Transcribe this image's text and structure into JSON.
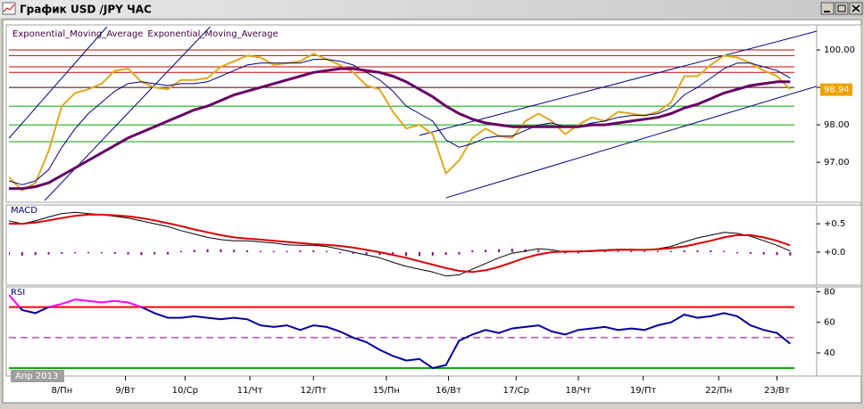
{
  "window": {
    "title": "График USD /JPY ЧАС"
  },
  "chart_data": [
    {
      "type": "line",
      "legend": true,
      "ylim": [
        95.98,
        100.62
      ],
      "yticks": [
        {
          "value": 97,
          "label": "97.00"
        },
        {
          "value": 98,
          "label": "98.00"
        },
        {
          "value": 99,
          "label": "99.00"
        },
        {
          "value": 100,
          "label": "100.00"
        }
      ],
      "last_price": 98.94,
      "last_price_color": "#f0a000",
      "levels": [
        {
          "value": 100.0,
          "color": "#cc0000"
        },
        {
          "value": 99.85,
          "color": "#cc0000"
        },
        {
          "value": 99.55,
          "color": "#cc0000"
        },
        {
          "value": 99.4,
          "color": "#cc0000"
        },
        {
          "value": 99.0,
          "color": "#400000"
        },
        {
          "value": 98.5,
          "color": "#00aa00"
        },
        {
          "value": 98.0,
          "color": "#00aa00"
        },
        {
          "value": 97.55,
          "color": "#00aa00"
        }
      ],
      "trendlines": [
        {
          "x": [
            0,
            7.4
          ],
          "y": [
            97.64,
            100.62
          ],
          "color": "#000080"
        },
        {
          "x": [
            2.7,
            15.2
          ],
          "y": [
            95.98,
            100.62
          ],
          "color": "#000080"
        },
        {
          "x": [
            31.0,
            61
          ],
          "y": [
            97.72,
            100.5
          ],
          "color": "#000080"
        },
        {
          "x": [
            33.0,
            61
          ],
          "y": [
            96.05,
            99.03
          ],
          "color": "#000080"
        }
      ],
      "series": [
        {
          "color": "#e0a820",
          "width": 2,
          "values": [
            96.6,
            96.25,
            96.45,
            97.3,
            98.5,
            98.85,
            98.95,
            99.1,
            99.45,
            99.5,
            99.15,
            99.0,
            98.95,
            99.2,
            99.2,
            99.25,
            99.55,
            99.7,
            99.85,
            99.8,
            99.6,
            99.65,
            99.7,
            99.9,
            99.75,
            99.6,
            99.4,
            99.05,
            98.95,
            98.35,
            97.9,
            98.0,
            97.75,
            96.7,
            97.05,
            97.65,
            97.9,
            97.7,
            97.65,
            98.1,
            98.3,
            98.1,
            97.75,
            98.0,
            98.2,
            98.1,
            98.35,
            98.3,
            98.25,
            98.35,
            98.6,
            99.3,
            99.3,
            99.6,
            99.85,
            99.8,
            99.65,
            99.45,
            99.3,
            98.95
          ]
        },
        {
          "name": "Exponential_Moving_Average",
          "color": "#000080",
          "width": 1,
          "values": [
            96.5,
            96.4,
            96.5,
            96.8,
            97.4,
            97.9,
            98.3,
            98.6,
            98.9,
            99.1,
            99.15,
            99.1,
            99.05,
            99.1,
            99.1,
            99.15,
            99.3,
            99.45,
            99.6,
            99.65,
            99.65,
            99.65,
            99.65,
            99.75,
            99.75,
            99.7,
            99.6,
            99.4,
            99.2,
            98.9,
            98.5,
            98.3,
            98.1,
            97.6,
            97.4,
            97.5,
            97.65,
            97.7,
            97.7,
            97.85,
            98.0,
            98.05,
            97.95,
            97.95,
            98.05,
            98.1,
            98.2,
            98.25,
            98.25,
            98.3,
            98.45,
            98.8,
            99.0,
            99.25,
            99.5,
            99.65,
            99.65,
            99.55,
            99.45,
            99.25
          ]
        },
        {
          "name": "Exponential_Moving_Average",
          "color": "#660066",
          "width": 3,
          "values": [
            96.3,
            96.3,
            96.35,
            96.45,
            96.65,
            96.85,
            97.05,
            97.25,
            97.45,
            97.65,
            97.8,
            97.95,
            98.1,
            98.25,
            98.4,
            98.5,
            98.65,
            98.8,
            98.9,
            99.0,
            99.1,
            99.2,
            99.3,
            99.4,
            99.45,
            99.5,
            99.5,
            99.45,
            99.4,
            99.3,
            99.15,
            98.95,
            98.75,
            98.5,
            98.3,
            98.15,
            98.05,
            98.0,
            97.95,
            97.95,
            97.95,
            97.95,
            97.95,
            97.95,
            98.0,
            98.0,
            98.05,
            98.1,
            98.15,
            98.2,
            98.3,
            98.45,
            98.55,
            98.7,
            98.85,
            98.95,
            99.05,
            99.1,
            99.15,
            99.15
          ]
        }
      ]
    },
    {
      "type": "line",
      "title": "MACD",
      "ylim": [
        -0.55,
        0.8
      ],
      "yticks": [
        {
          "value": 0.5,
          "label": "+0.5"
        },
        {
          "value": 0,
          "label": "+0.0"
        }
      ],
      "series": [
        {
          "type": "bar",
          "color": "#800080",
          "values": [
            -0.05,
            -0.06,
            -0.05,
            -0.04,
            -0.03,
            -0.02,
            -0.02,
            -0.02,
            -0.03,
            -0.04,
            -0.05,
            -0.04,
            -0.04,
            0.02,
            0.04,
            0.05,
            0.05,
            0.04,
            0.03,
            0.02,
            0.02,
            0.02,
            0.03,
            0.03,
            0.02,
            -0.02,
            -0.03,
            -0.04,
            -0.05,
            -0.06,
            -0.07,
            -0.07,
            -0.06,
            -0.05,
            -0.04,
            0.03,
            0.04,
            0.05,
            0.06,
            0.05,
            0.04,
            0.02,
            -0.02,
            -0.02,
            0.02,
            0.02,
            0.02,
            0.02,
            0.02,
            0.02,
            0.02,
            0.03,
            0.03,
            0.03,
            0.02,
            -0.02,
            -0.03,
            -0.04,
            -0.05,
            -0.06
          ]
        },
        {
          "color": "#000000",
          "width": 1,
          "values": [
            0.55,
            0.5,
            0.55,
            0.62,
            0.68,
            0.7,
            0.68,
            0.66,
            0.63,
            0.6,
            0.55,
            0.5,
            0.45,
            0.38,
            0.32,
            0.26,
            0.22,
            0.2,
            0.2,
            0.18,
            0.16,
            0.13,
            0.12,
            0.12,
            0.1,
            0.05,
            0.0,
            -0.05,
            -0.1,
            -0.18,
            -0.25,
            -0.3,
            -0.35,
            -0.42,
            -0.4,
            -0.3,
            -0.2,
            -0.1,
            -0.02,
            0.02,
            0.06,
            0.04,
            0.0,
            0.02,
            0.03,
            0.04,
            0.05,
            0.05,
            0.04,
            0.06,
            0.1,
            0.18,
            0.25,
            0.3,
            0.35,
            0.33,
            0.28,
            0.2,
            0.12,
            0.02
          ]
        },
        {
          "color": "#dd0000",
          "width": 2,
          "values": [
            0.5,
            0.5,
            0.52,
            0.56,
            0.6,
            0.64,
            0.66,
            0.66,
            0.65,
            0.63,
            0.6,
            0.56,
            0.51,
            0.46,
            0.4,
            0.35,
            0.3,
            0.26,
            0.24,
            0.22,
            0.2,
            0.18,
            0.16,
            0.14,
            0.13,
            0.11,
            0.08,
            0.04,
            0.0,
            -0.05,
            -0.1,
            -0.16,
            -0.22,
            -0.28,
            -0.33,
            -0.35,
            -0.32,
            -0.26,
            -0.18,
            -0.1,
            -0.04,
            0.0,
            0.01,
            0.01,
            0.02,
            0.03,
            0.04,
            0.04,
            0.04,
            0.05,
            0.07,
            0.1,
            0.15,
            0.2,
            0.26,
            0.3,
            0.3,
            0.26,
            0.2,
            0.12
          ]
        }
      ]
    },
    {
      "type": "line",
      "title": "RSI",
      "ylim": [
        26,
        82
      ],
      "yticks": [
        40,
        60,
        80
      ],
      "levels": [
        {
          "value": 70,
          "color": "#ff0000",
          "width": 2
        },
        {
          "value": 50,
          "color": "#800080",
          "dash": true
        },
        {
          "value": 30,
          "color": "#00a000",
          "width": 2
        }
      ],
      "x_label": "Апр 2013",
      "x": [
        0,
        1,
        2,
        3,
        4,
        5,
        6,
        7,
        8,
        9,
        10,
        11,
        12,
        13,
        14,
        15,
        16,
        17,
        18,
        19,
        20,
        21,
        22,
        23,
        24,
        25,
        26,
        27,
        28,
        29,
        30,
        31,
        32,
        33,
        34,
        35,
        36,
        37,
        38,
        39,
        40,
        41,
        42,
        43,
        44,
        45,
        46,
        47,
        48,
        49,
        50,
        51,
        52,
        53,
        54,
        55,
        56,
        57,
        58,
        59
      ],
      "xlim": [
        0,
        61
      ],
      "xticks": [
        {
          "value": 4.0,
          "label": "8/Пн"
        },
        {
          "value": 8.8,
          "label": "9/Вт"
        },
        {
          "value": 13.3,
          "label": "10/Ср"
        },
        {
          "value": 18.2,
          "label": "11/Чт"
        },
        {
          "value": 23.0,
          "label": "12/Пт"
        },
        {
          "value": 28.5,
          "label": "15/Пн"
        },
        {
          "value": 33.2,
          "label": "16/Вт"
        },
        {
          "value": 38.3,
          "label": "17/Ср"
        },
        {
          "value": 43.0,
          "label": "18/Чт"
        },
        {
          "value": 47.9,
          "label": "19/Пт"
        },
        {
          "value": 53.6,
          "label": "22/Пн"
        },
        {
          "value": 58.0,
          "label": "23/Вт"
        }
      ],
      "series": [
        {
          "color": "#0000a0",
          "highlight_color": "#ff00ff",
          "width": 2,
          "values": [
            78,
            68,
            66,
            70,
            72,
            75,
            74,
            73,
            74,
            73,
            70,
            66,
            63,
            63,
            64,
            63,
            62,
            63,
            62,
            58,
            57,
            58,
            55,
            58,
            57,
            54,
            50,
            47,
            42,
            38,
            35,
            36,
            30,
            32,
            48,
            52,
            55,
            53,
            56,
            57,
            58,
            54,
            52,
            55,
            56,
            57,
            55,
            56,
            55,
            58,
            60,
            65,
            63,
            64,
            66,
            64,
            58,
            55,
            53,
            46
          ]
        }
      ]
    }
  ]
}
